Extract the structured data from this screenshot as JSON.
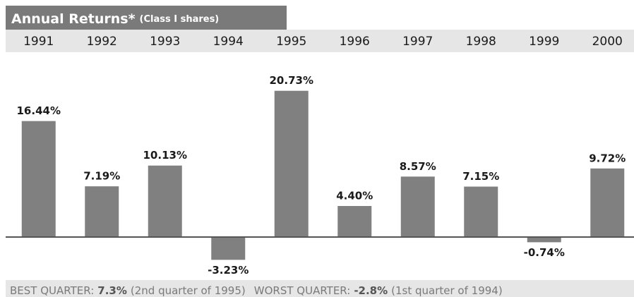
{
  "chart_data": {
    "type": "bar",
    "title": "Annual Returns*",
    "subtitle": "(Class I shares)",
    "categories": [
      "1991",
      "1992",
      "1993",
      "1994",
      "1995",
      "1996",
      "1997",
      "1998",
      "1999",
      "2000"
    ],
    "values": [
      16.44,
      7.19,
      10.13,
      -3.23,
      20.73,
      4.4,
      8.57,
      7.15,
      -0.74,
      9.72
    ],
    "value_labels": [
      "16.44%",
      "7.19%",
      "10.13%",
      "-3.23%",
      "20.73%",
      "4.40%",
      "8.57%",
      "7.15%",
      "-0.74%",
      "9.72%"
    ],
    "color": "#808080",
    "ylim": [
      -6,
      26
    ]
  },
  "footer": {
    "best_label": "BEST QUARTER:",
    "best_value": "7.3%",
    "best_note": "(2nd quarter of 1995)",
    "worst_label": "WORST QUARTER:",
    "worst_value": "-2.8%",
    "worst_note": "(1st quarter of 1994)"
  }
}
